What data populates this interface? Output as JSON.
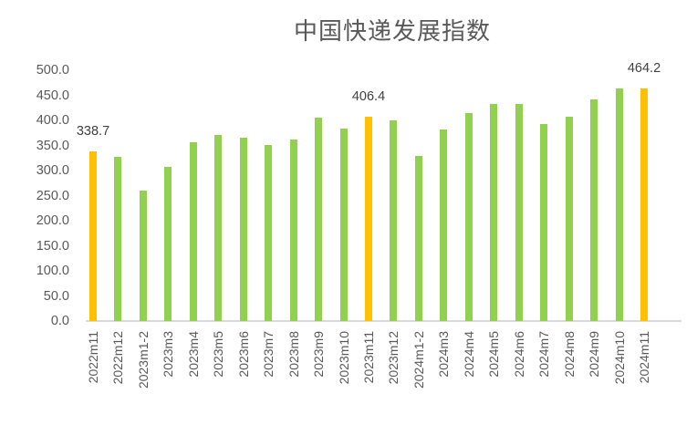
{
  "chart_data": {
    "type": "bar",
    "title": "中国快递发展指数",
    "xlabel": "",
    "ylabel": "",
    "ylim": [
      0,
      500
    ],
    "yticks": [
      "0.0",
      "50.0",
      "100.0",
      "150.0",
      "200.0",
      "250.0",
      "300.0",
      "350.0",
      "400.0",
      "450.0",
      "500.0"
    ],
    "grid": false,
    "legend": null,
    "categories": [
      "2022m11",
      "2022m12",
      "2023m1-2",
      "2023m3",
      "2023m4",
      "2023m5",
      "2023m6",
      "2023m7",
      "2023m8",
      "2023m9",
      "2023m10",
      "2023m11",
      "2023m12",
      "2024m1-2",
      "2024m3",
      "2024m4",
      "2024m5",
      "2024m6",
      "2024m7",
      "2024m8",
      "2024m9",
      "2024m10",
      "2024m11"
    ],
    "values": [
      338.7,
      327,
      260,
      307,
      356,
      371,
      365,
      351,
      362,
      405,
      384,
      406.4,
      400,
      330,
      382,
      415,
      433,
      433,
      393,
      407,
      442,
      464,
      464.2
    ],
    "highlighted": [
      "2022m11",
      "2023m11",
      "2024m11"
    ],
    "data_labels": [
      {
        "category": "2022m11",
        "text": "338.7"
      },
      {
        "category": "2023m11",
        "text": "406.4"
      },
      {
        "category": "2024m11",
        "text": "464.2"
      }
    ],
    "colors": {
      "default": "#92D050",
      "highlight": "#FFC000"
    }
  }
}
